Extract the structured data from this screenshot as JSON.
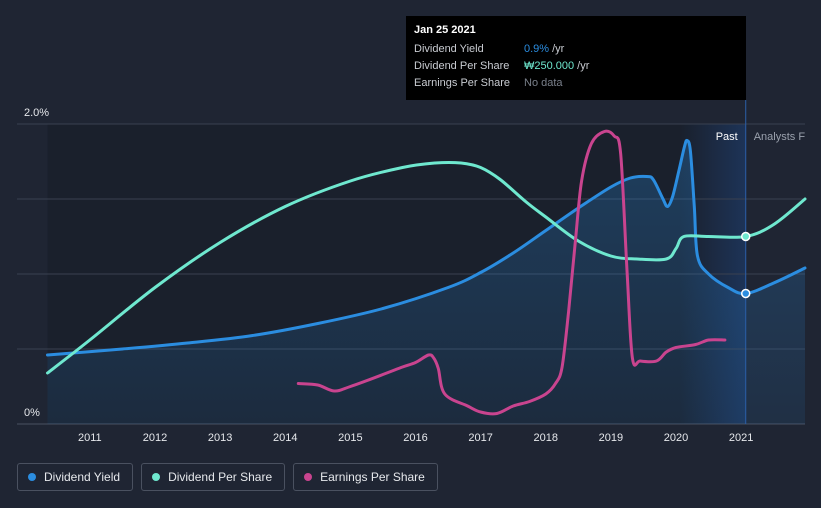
{
  "chart_data": {
    "type": "line",
    "title": "",
    "xlabel": "",
    "ylabel": "",
    "x_ticks": [
      "2011",
      "2012",
      "2013",
      "2014",
      "2015",
      "2016",
      "2017",
      "2018",
      "2019",
      "2020",
      "2021"
    ],
    "y_ticks": [
      "0%",
      "2.0%"
    ],
    "xlim": [
      2010.35,
      2021.98
    ],
    "ylim": [
      0,
      2.0
    ],
    "regions": {
      "past_label": "Past",
      "forecast_label": "Analysts F",
      "split_year": 2021.07
    },
    "series": [
      {
        "name": "Dividend Yield",
        "color": "#2b8de0",
        "unit": "%",
        "points": [
          [
            2010.35,
            0.46
          ],
          [
            2011.5,
            0.5
          ],
          [
            2012.5,
            0.54
          ],
          [
            2013.5,
            0.59
          ],
          [
            2014.5,
            0.67
          ],
          [
            2015.5,
            0.77
          ],
          [
            2016.5,
            0.91
          ],
          [
            2017.0,
            1.01
          ],
          [
            2017.5,
            1.14
          ],
          [
            2018.0,
            1.29
          ],
          [
            2018.5,
            1.44
          ],
          [
            2019.0,
            1.58
          ],
          [
            2019.3,
            1.64
          ],
          [
            2019.55,
            1.65
          ],
          [
            2019.65,
            1.63
          ],
          [
            2019.8,
            1.5
          ],
          [
            2019.87,
            1.45
          ],
          [
            2019.95,
            1.52
          ],
          [
            2020.05,
            1.7
          ],
          [
            2020.13,
            1.85
          ],
          [
            2020.17,
            1.89
          ],
          [
            2020.22,
            1.82
          ],
          [
            2020.28,
            1.45
          ],
          [
            2020.33,
            1.12
          ],
          [
            2020.5,
            1.0
          ],
          [
            2020.8,
            0.91
          ],
          [
            2021.07,
            0.87
          ],
          [
            2021.5,
            0.94
          ],
          [
            2021.98,
            1.04
          ]
        ]
      },
      {
        "name": "Dividend Per Share",
        "color": "#6fe8cf",
        "unit": "KRW",
        "points": [
          [
            2010.35,
            0.34
          ],
          [
            2011.0,
            0.56
          ],
          [
            2012.0,
            0.91
          ],
          [
            2013.0,
            1.21
          ],
          [
            2014.0,
            1.45
          ],
          [
            2015.0,
            1.62
          ],
          [
            2015.8,
            1.71
          ],
          [
            2016.3,
            1.74
          ],
          [
            2016.7,
            1.74
          ],
          [
            2017.0,
            1.71
          ],
          [
            2017.3,
            1.63
          ],
          [
            2017.7,
            1.48
          ],
          [
            2018.0,
            1.38
          ],
          [
            2018.5,
            1.22
          ],
          [
            2019.0,
            1.12
          ],
          [
            2019.4,
            1.1
          ],
          [
            2019.85,
            1.1
          ],
          [
            2020.0,
            1.17
          ],
          [
            2020.12,
            1.25
          ],
          [
            2020.5,
            1.25
          ],
          [
            2021.07,
            1.25
          ],
          [
            2021.5,
            1.33
          ],
          [
            2021.98,
            1.5
          ]
        ]
      },
      {
        "name": "Earnings Per Share",
        "color": "#c9448f",
        "unit": "KRW",
        "points": [
          [
            2014.2,
            0.27
          ],
          [
            2014.5,
            0.26
          ],
          [
            2014.75,
            0.22
          ],
          [
            2015.0,
            0.25
          ],
          [
            2015.5,
            0.33
          ],
          [
            2015.8,
            0.38
          ],
          [
            2016.0,
            0.41
          ],
          [
            2016.2,
            0.46
          ],
          [
            2016.28,
            0.44
          ],
          [
            2016.35,
            0.37
          ],
          [
            2016.45,
            0.2
          ],
          [
            2016.8,
            0.12
          ],
          [
            2017.0,
            0.08
          ],
          [
            2017.25,
            0.07
          ],
          [
            2017.5,
            0.12
          ],
          [
            2017.75,
            0.15
          ],
          [
            2018.0,
            0.2
          ],
          [
            2018.15,
            0.27
          ],
          [
            2018.25,
            0.38
          ],
          [
            2018.35,
            0.75
          ],
          [
            2018.45,
            1.2
          ],
          [
            2018.55,
            1.62
          ],
          [
            2018.7,
            1.87
          ],
          [
            2018.9,
            1.95
          ],
          [
            2019.05,
            1.92
          ],
          [
            2019.15,
            1.8
          ],
          [
            2019.25,
            1.0
          ],
          [
            2019.33,
            0.44
          ],
          [
            2019.45,
            0.42
          ],
          [
            2019.7,
            0.42
          ],
          [
            2019.85,
            0.48
          ],
          [
            2020.0,
            0.51
          ],
          [
            2020.3,
            0.53
          ],
          [
            2020.5,
            0.56
          ],
          [
            2020.75,
            0.56
          ]
        ]
      }
    ],
    "markers": [
      {
        "series": "Dividend Yield",
        "x": 2021.07,
        "y": 0.87
      },
      {
        "series": "Dividend Per Share",
        "x": 2021.07,
        "y": 1.25
      }
    ]
  },
  "tooltip": {
    "date": "Jan 25 2021",
    "rows": [
      {
        "label": "Dividend Yield",
        "value": "0.9%",
        "unit": "/yr",
        "color": "#2b8de0"
      },
      {
        "label": "Dividend Per Share",
        "value": "₩250.000",
        "unit": "/yr",
        "color": "#6fe8cf"
      },
      {
        "label": "Earnings Per Share",
        "value": "No data",
        "unit": "",
        "color": "#7a808b"
      }
    ]
  },
  "legend": [
    {
      "label": "Dividend Yield",
      "color": "#2b8de0"
    },
    {
      "label": "Dividend Per Share",
      "color": "#6fe8cf"
    },
    {
      "label": "Earnings Per Share",
      "color": "#c9448f"
    }
  ]
}
